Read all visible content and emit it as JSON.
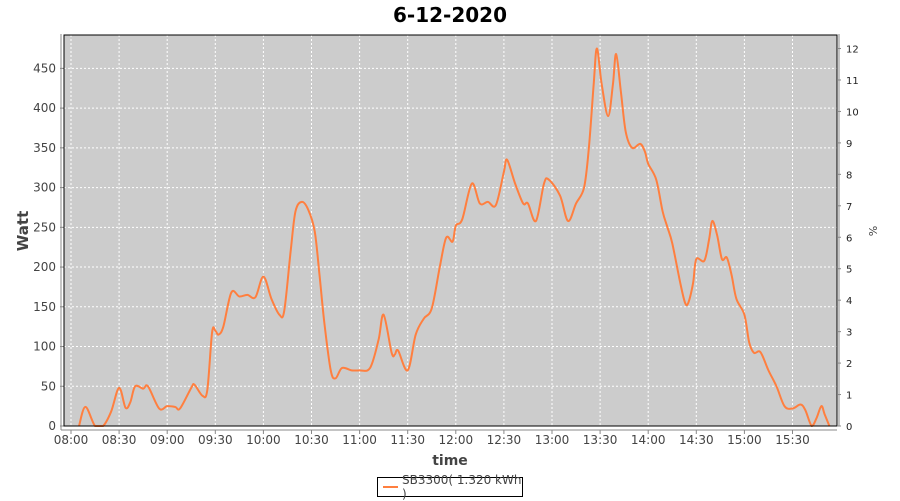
{
  "chart_data": {
    "type": "line",
    "title": "6-12-2020",
    "xlabel": "time",
    "ylabel": "Watt",
    "y2label": "%",
    "ylim": [
      0,
      492
    ],
    "y2lim": [
      0,
      12.43
    ],
    "yticks": [
      0,
      50,
      100,
      150,
      200,
      250,
      300,
      350,
      400,
      450
    ],
    "y2ticks": [
      0,
      1,
      2,
      3,
      4,
      5,
      6,
      7,
      8,
      9,
      10,
      11,
      12
    ],
    "xticks": [
      "08:00",
      "08:30",
      "09:00",
      "09:30",
      "10:00",
      "10:30",
      "11:00",
      "11:30",
      "12:00",
      "12:30",
      "13:00",
      "13:30",
      "14:00",
      "14:30",
      "15:00",
      "15:30"
    ],
    "grid": true,
    "background": "#cccccc",
    "legend_position": "bottom",
    "series": [
      {
        "name": "SB3300( 1.320 kWh )",
        "color": "#ff7f3f",
        "x": [
          "08:05",
          "08:09",
          "08:15",
          "08:20",
          "08:25",
          "08:30",
          "08:34",
          "08:37",
          "08:40",
          "08:45",
          "08:48",
          "08:55",
          "09:00",
          "09:05",
          "09:08",
          "09:15",
          "09:17",
          "09:22",
          "09:25",
          "09:28",
          "09:30",
          "09:32",
          "09:35",
          "09:40",
          "09:45",
          "09:50",
          "09:55",
          "10:00",
          "10:05",
          "10:10",
          "10:13",
          "10:17",
          "10:20",
          "10:24",
          "10:28",
          "10:32",
          "10:35",
          "10:38",
          "10:42",
          "10:45",
          "10:49",
          "10:55",
          "11:00",
          "11:05",
          "11:08",
          "11:12",
          "11:15",
          "11:20",
          "11:22",
          "11:24",
          "11:30",
          "11:35",
          "11:40",
          "11:45",
          "11:50",
          "11:54",
          "11:58",
          "12:00",
          "12:04",
          "12:10",
          "12:15",
          "12:20",
          "12:25",
          "12:30",
          "12:32",
          "12:37",
          "12:42",
          "12:45",
          "12:50",
          "12:55",
          "12:58",
          "13:05",
          "13:10",
          "13:15",
          "13:20",
          "13:23",
          "13:26",
          "13:28",
          "13:31",
          "13:35",
          "13:38",
          "13:40",
          "13:43",
          "13:46",
          "13:50",
          "13:55",
          "13:58",
          "14:00",
          "14:05",
          "14:09",
          "14:12",
          "14:15",
          "14:20",
          "14:23",
          "14:25",
          "14:28",
          "14:30",
          "14:35",
          "14:38",
          "14:40",
          "14:43",
          "14:46",
          "14:49",
          "14:52",
          "14:55",
          "15:00",
          "15:03",
          "15:06",
          "15:10",
          "15:15",
          "15:20",
          "15:25",
          "15:30",
          "15:35",
          "15:38",
          "15:42",
          "15:45",
          "15:48",
          "15:50",
          "15:53"
        ],
        "values": [
          0,
          24,
          0,
          0,
          18,
          48,
          23,
          30,
          50,
          47,
          50,
          22,
          25,
          24,
          22,
          48,
          52,
          38,
          45,
          118,
          120,
          115,
          125,
          168,
          163,
          165,
          162,
          188,
          160,
          140,
          145,
          220,
          270,
          282,
          272,
          245,
          190,
          130,
          70,
          60,
          73,
          70,
          70,
          70,
          80,
          110,
          140,
          92,
          90,
          95,
          70,
          115,
          135,
          148,
          200,
          237,
          232,
          252,
          260,
          305,
          280,
          282,
          278,
          320,
          335,
          305,
          280,
          280,
          258,
          305,
          310,
          290,
          258,
          280,
          300,
          350,
          430,
          475,
          430,
          390,
          430,
          468,
          420,
          370,
          350,
          355,
          345,
          330,
          310,
          270,
          250,
          230,
          180,
          155,
          155,
          180,
          210,
          208,
          235,
          258,
          240,
          210,
          212,
          190,
          160,
          140,
          105,
          92,
          93,
          70,
          50,
          25,
          22,
          27,
          20,
          0,
          10,
          25,
          15,
          0
        ]
      }
    ]
  }
}
